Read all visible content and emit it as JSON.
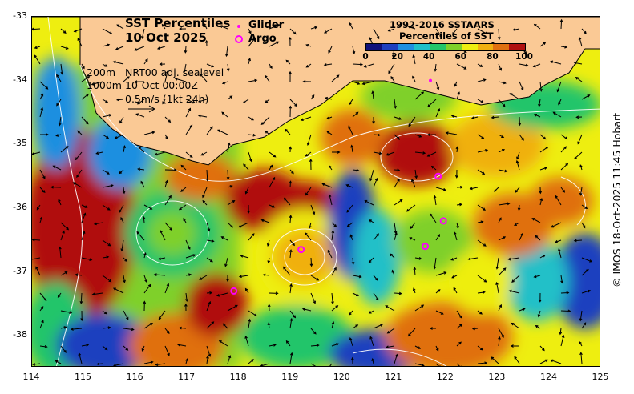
{
  "title": {
    "line1": "SST Percentiles",
    "line2": "10 Oct 2025"
  },
  "legend_symbols": [
    {
      "label": "Glider",
      "marker": "dot",
      "color": "#ff00ff"
    },
    {
      "label": "Argo",
      "marker": "ring",
      "color": "#ff00ff"
    }
  ],
  "colorbar": {
    "title1": "1992-2016 SSTAARS",
    "title2": "Percentiles of SST",
    "ticks": [
      "0",
      "20",
      "40",
      "60",
      "80",
      "100"
    ],
    "colors": [
      "#10107a",
      "#1f3fbf",
      "#1f8fe0",
      "#20c0c8",
      "#22c56a",
      "#7fd02a",
      "#eeee10",
      "#f0b010",
      "#e07010",
      "#b01010"
    ]
  },
  "info": {
    "contour_label": "200m\n1000m",
    "product": "NRT00 adj. sealevel",
    "time": "10-Oct 00:00Z",
    "scale_text": "0.5m/s (1kt 24h)"
  },
  "axes": {
    "x_ticks": [
      "114",
      "115",
      "116",
      "117",
      "118",
      "119",
      "120",
      "121",
      "122",
      "123",
      "124",
      "125"
    ],
    "y_ticks": [
      "-33",
      "-34",
      "-35",
      "-36",
      "-37",
      "-38"
    ],
    "xlim": [
      114,
      125
    ],
    "ylim": [
      -38.5,
      -33
    ]
  },
  "argo_floats": [
    {
      "lon": 117.9,
      "lat": -37.3
    },
    {
      "lon": 119.2,
      "lat": -36.65
    },
    {
      "lon": 121.6,
      "lat": -36.6
    },
    {
      "lon": 121.95,
      "lat": -36.2
    },
    {
      "lon": 121.85,
      "lat": -35.5
    }
  ],
  "glider": {
    "lon": 121.7,
    "lat": -34.0
  },
  "credit": "© IMOS 18-Oct-2025 11:45 Hobart"
}
